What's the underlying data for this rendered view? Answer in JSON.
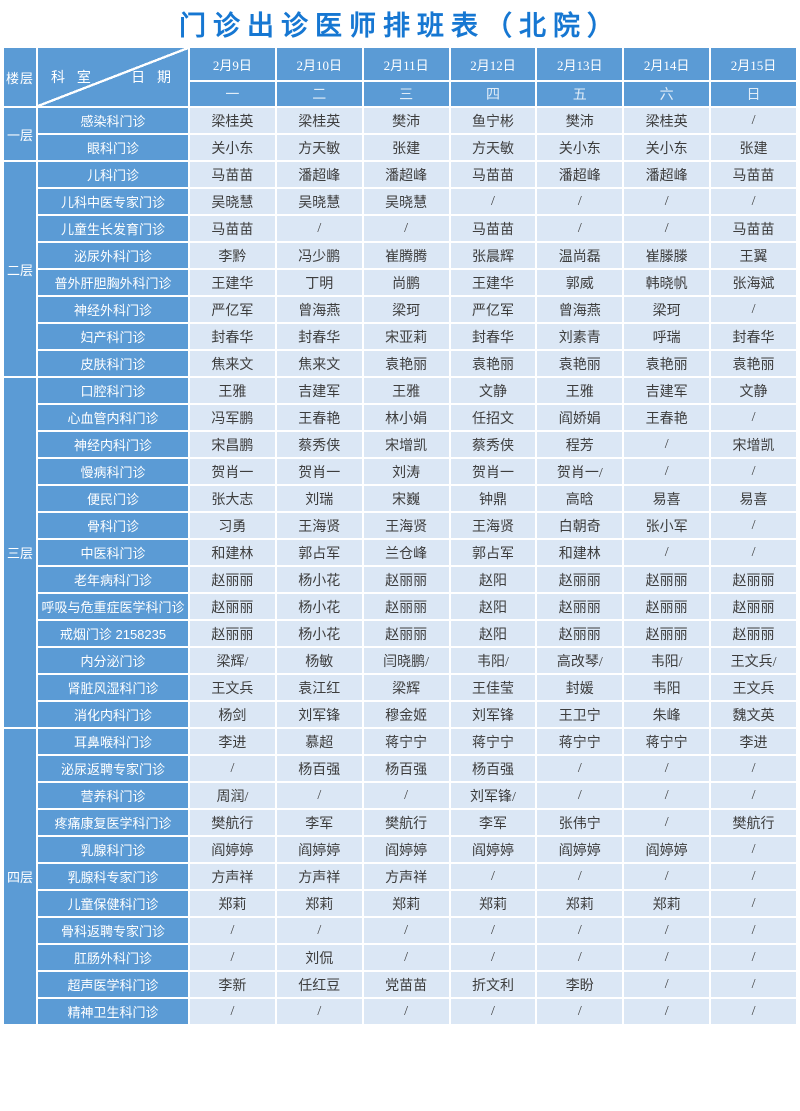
{
  "title": "门诊出诊医师排班表（北院）",
  "colors": {
    "header_blue": "#5b9bd5",
    "cell_blue": "#dbe7f5",
    "title_blue": "#1677d2"
  },
  "header": {
    "floor_label": "楼层",
    "dept_label": "科 室",
    "date_label": "日 期",
    "dates": [
      "2月9日",
      "2月10日",
      "2月11日",
      "2月12日",
      "2月13日",
      "2月14日",
      "2月15日"
    ],
    "weekdays": [
      "一",
      "二",
      "三",
      "四",
      "五",
      "六",
      "日"
    ]
  },
  "floors": [
    {
      "label": "一层",
      "rows": [
        {
          "dept": "感染科门诊",
          "cells": [
            "梁桂英",
            "梁桂英",
            "樊沛",
            "鱼宁彬",
            "樊沛",
            "梁桂英",
            "/"
          ]
        },
        {
          "dept": "眼科门诊",
          "cells": [
            "关小东",
            "方天敏",
            "张建",
            "方天敏",
            "关小东",
            "关小东",
            "张建"
          ]
        }
      ]
    },
    {
      "label": "二层",
      "rows": [
        {
          "dept": "儿科门诊",
          "cells": [
            "马苗苗",
            "潘超峰",
            "潘超峰",
            "马苗苗",
            "潘超峰",
            "潘超峰",
            "马苗苗"
          ]
        },
        {
          "dept": "儿科中医专家门诊",
          "cells": [
            "吴晓慧",
            "吴晓慧",
            "吴晓慧",
            "/",
            "/",
            "/",
            "/"
          ]
        },
        {
          "dept": "儿童生长发育门诊",
          "cells": [
            "马苗苗",
            "/",
            "/",
            "马苗苗",
            "/",
            "/",
            "马苗苗"
          ]
        },
        {
          "dept": "泌尿外科门诊",
          "cells": [
            "李黔",
            "冯少鹏",
            "崔腾腾",
            "张晨辉",
            "温尚磊",
            "崔滕滕",
            "王翼"
          ]
        },
        {
          "dept": "普外肝胆胸外科门诊",
          "cells": [
            "王建华",
            "丁明",
            "尚鹏",
            "王建华",
            "郭威",
            "韩晓帆",
            "张海斌"
          ]
        },
        {
          "dept": "神经外科门诊",
          "cells": [
            "严亿军",
            "曾海燕",
            "梁珂",
            "严亿军",
            "曾海燕",
            "梁珂",
            "/"
          ]
        },
        {
          "dept": "妇产科门诊",
          "cells": [
            "封春华",
            "封春华",
            "宋亚莉",
            "封春华",
            "刘素青",
            "呼瑞",
            "封春华"
          ]
        },
        {
          "dept": "皮肤科门诊",
          "cells": [
            "焦来文",
            "焦来文",
            "袁艳丽",
            "袁艳丽",
            "袁艳丽",
            "袁艳丽",
            "袁艳丽"
          ]
        }
      ]
    },
    {
      "label": "三层",
      "rows": [
        {
          "dept": "口腔科门诊",
          "cells": [
            "王雅",
            "吉建军",
            "王雅",
            "文静",
            "王雅",
            "吉建军",
            "文静"
          ]
        },
        {
          "dept": "心血管内科门诊",
          "cells": [
            "冯军鹏",
            "王春艳",
            "林小娟",
            "任招文",
            "阎娇娟",
            "王春艳",
            "/"
          ]
        },
        {
          "dept": "神经内科门诊",
          "cells": [
            "宋昌鹏",
            "蔡秀侠",
            "宋增凯",
            "蔡秀侠",
            "程芳",
            "/",
            "宋增凯"
          ]
        },
        {
          "dept": "慢病科门诊",
          "cells": [
            "贺肖一",
            "贺肖一",
            "刘涛",
            "贺肖一",
            "贺肖一/",
            "/",
            "/"
          ]
        },
        {
          "dept": "便民门诊",
          "cells": [
            "张大志",
            "刘瑞",
            "宋巍",
            "钟鼎",
            "高晗",
            "易喜",
            "易喜"
          ]
        },
        {
          "dept": "骨科门诊",
          "cells": [
            "习勇",
            "王海贤",
            "王海贤",
            "王海贤",
            "白朝奇",
            "张小军",
            "/"
          ]
        },
        {
          "dept": "中医科门诊",
          "cells": [
            "和建林",
            "郭占军",
            "兰仓峰",
            "郭占军",
            "和建林",
            "/",
            "/"
          ]
        },
        {
          "dept": "老年病科门诊",
          "cells": [
            "赵丽丽",
            "杨小花",
            "赵丽丽",
            "赵阳",
            "赵丽丽",
            "赵丽丽",
            "赵丽丽"
          ]
        },
        {
          "dept": "呼吸与危重症医学科门诊",
          "cells": [
            "赵丽丽",
            "杨小花",
            "赵丽丽",
            "赵阳",
            "赵丽丽",
            "赵丽丽",
            "赵丽丽"
          ]
        },
        {
          "dept": "戒烟门诊 2158235",
          "cells": [
            "赵丽丽",
            "杨小花",
            "赵丽丽",
            "赵阳",
            "赵丽丽",
            "赵丽丽",
            "赵丽丽"
          ]
        },
        {
          "dept": "内分泌门诊",
          "cells": [
            "梁辉/",
            "杨敏",
            "闫晓鹏/",
            "韦阳/",
            "高改琴/",
            "韦阳/",
            "王文兵/"
          ]
        },
        {
          "dept": "肾脏风湿科门诊",
          "cells": [
            "王文兵",
            "袁江红",
            "梁辉",
            "王佳莹",
            "封媛",
            "韦阳",
            "王文兵"
          ]
        },
        {
          "dept": "消化内科门诊",
          "cells": [
            "杨剑",
            "刘军锋",
            "穆金姬",
            "刘军锋",
            "王卫宁",
            "朱峰",
            "魏文英"
          ]
        }
      ]
    },
    {
      "label": "四层",
      "rows": [
        {
          "dept": "耳鼻喉科门诊",
          "cells": [
            "李进",
            "慕超",
            "蒋宁宁",
            "蒋宁宁",
            "蒋宁宁",
            "蒋宁宁",
            "李进"
          ]
        },
        {
          "dept": "泌尿返聘专家门诊",
          "cells": [
            "/",
            "杨百强",
            "杨百强",
            "杨百强",
            "/",
            "/",
            "/"
          ]
        },
        {
          "dept": "营养科门诊",
          "cells": [
            "周润/",
            "/",
            "/",
            "刘军锋/",
            "/",
            "/",
            "/"
          ]
        },
        {
          "dept": "疼痛康复医学科门诊",
          "cells": [
            "樊航行",
            "李军",
            "樊航行",
            "李军",
            "张伟宁",
            "/",
            "樊航行"
          ]
        },
        {
          "dept": "乳腺科门诊",
          "cells": [
            "阎婷婷",
            "阎婷婷",
            "阎婷婷",
            "阎婷婷",
            "阎婷婷",
            "阎婷婷",
            "/"
          ]
        },
        {
          "dept": "乳腺科专家门诊",
          "cells": [
            "方声祥",
            "方声祥",
            "方声祥",
            "/",
            "/",
            "/",
            "/"
          ]
        },
        {
          "dept": "儿童保健科门诊",
          "cells": [
            "郑莉",
            "郑莉",
            "郑莉",
            "郑莉",
            "郑莉",
            "郑莉",
            "/"
          ]
        },
        {
          "dept": "骨科返聘专家门诊",
          "cells": [
            "/",
            "/",
            "/",
            "/",
            "/",
            "/",
            "/"
          ]
        },
        {
          "dept": "肛肠外科门诊",
          "cells": [
            "/",
            "刘侃",
            "/",
            "/",
            "/",
            "/",
            "/"
          ]
        },
        {
          "dept": "超声医学科门诊",
          "cells": [
            "李新",
            "任红豆",
            "党苗苗",
            "折文利",
            "李盼",
            "/",
            "/"
          ]
        },
        {
          "dept": "精神卫生科门诊",
          "cells": [
            "/",
            "/",
            "/",
            "/",
            "/",
            "/",
            "/"
          ]
        }
      ]
    }
  ]
}
